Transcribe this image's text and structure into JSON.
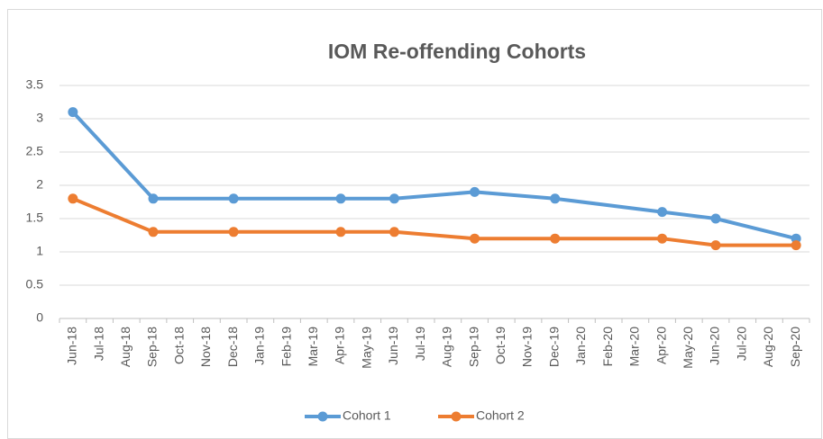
{
  "chart_data": {
    "type": "line",
    "title": "IOM Re-offending Cohorts",
    "categories": [
      "Jun-18",
      "Jul-18",
      "Aug-18",
      "Sep-18",
      "Oct-18",
      "Nov-18",
      "Dec-18",
      "Jan-19",
      "Feb-19",
      "Mar-19",
      "Apr-19",
      "May-19",
      "Jun-19",
      "Jul-19",
      "Aug-19",
      "Sep-19",
      "Oct-19",
      "Nov-19",
      "Dec-19",
      "Jan-20",
      "Feb-20",
      "Mar-20",
      "Apr-20",
      "May-20",
      "Jun-20",
      "Jul-20",
      "Aug-20",
      "Sep-20"
    ],
    "x": [
      "Jun-18",
      "Sep-18",
      "Dec-18",
      "Apr-19",
      "Jun-19",
      "Sep-19",
      "Dec-19",
      "Apr-20",
      "Jun-20",
      "Sep-20"
    ],
    "series": [
      {
        "name": "Cohort 1",
        "color": "#5b9bd5",
        "values": [
          3.1,
          1.8,
          1.8,
          1.8,
          1.8,
          1.9,
          1.8,
          1.6,
          1.5,
          1.2
        ]
      },
      {
        "name": "Cohort 2",
        "color": "#ed7d31",
        "values": [
          1.8,
          1.3,
          1.3,
          1.3,
          1.3,
          1.2,
          1.2,
          1.2,
          1.1,
          1.1
        ]
      }
    ],
    "ylim": [
      0,
      3.5
    ],
    "yticks": [
      0,
      0.5,
      1,
      1.5,
      2,
      2.5,
      3,
      3.5
    ],
    "grid": true,
    "legend": "bottom"
  }
}
